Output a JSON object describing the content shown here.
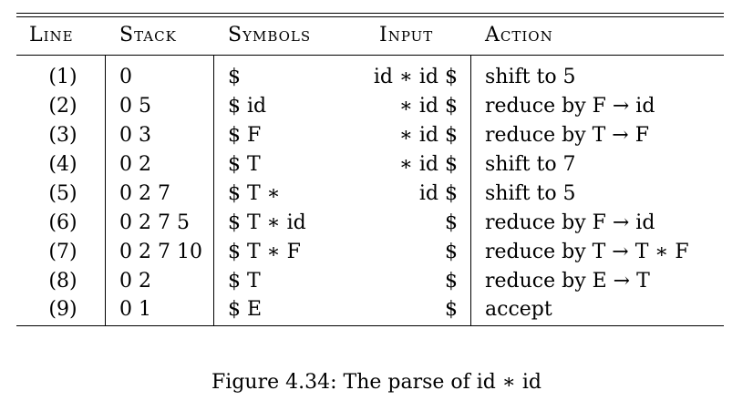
{
  "table": {
    "headers": {
      "line": "Line",
      "stack": "Stack",
      "symbols": "Symbols",
      "input": "Input",
      "action": "Action"
    },
    "rows": [
      {
        "line": "(1)",
        "stack": "0",
        "symbols": "$",
        "input": "id ∗ id $",
        "action": "shift to 5"
      },
      {
        "line": "(2)",
        "stack": "0 5",
        "symbols": "$ id",
        "input": "∗ id $",
        "action": "reduce by F → id"
      },
      {
        "line": "(3)",
        "stack": "0 3",
        "symbols": "$ F",
        "input": "∗ id $",
        "action": "reduce by T → F"
      },
      {
        "line": "(4)",
        "stack": "0 2",
        "symbols": "$ T",
        "input": "∗ id $",
        "action": "shift to 7"
      },
      {
        "line": "(5)",
        "stack": "0 2 7",
        "symbols": "$ T ∗",
        "input": "id $",
        "action": "shift to 5"
      },
      {
        "line": "(6)",
        "stack": "0 2 7 5",
        "symbols": "$ T ∗ id",
        "input": "$",
        "action": "reduce by F → id"
      },
      {
        "line": "(7)",
        "stack": "0 2 7 10",
        "symbols": "$ T ∗ F",
        "input": "$",
        "action": "reduce by T → T ∗ F"
      },
      {
        "line": "(8)",
        "stack": "0 2",
        "symbols": "$ T",
        "input": "$",
        "action": "reduce by E → T"
      },
      {
        "line": "(9)",
        "stack": "0 1",
        "symbols": "$ E",
        "input": "$",
        "action": "accept"
      }
    ]
  },
  "caption": "Figure 4.34: The parse of id ∗ id"
}
